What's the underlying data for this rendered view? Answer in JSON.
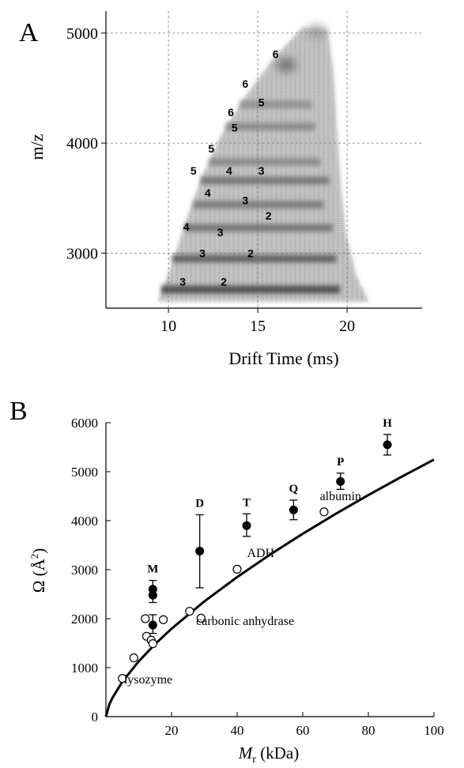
{
  "panel_a": {
    "letter": "A",
    "x_label": "Drift Time (ms)",
    "y_label": "m/z"
  },
  "panel_b": {
    "letter": "B",
    "x_label_main": "M",
    "x_label_sub": "r",
    "x_label_units": " (kDa)",
    "y_label_main": "Ω (Å",
    "y_label_sup": "2",
    "y_label_end": ")"
  },
  "chart_data": [
    {
      "type": "heatmap",
      "title": "",
      "xlabel": "Drift Time (ms)",
      "ylabel": "m/z",
      "xlim": [
        6.5,
        24.2
      ],
      "ylim": [
        2500,
        5200
      ],
      "x_ticks": [
        10,
        15,
        20
      ],
      "y_ticks": [
        3000,
        4000,
        5000
      ],
      "grid": true,
      "colormap": "grayscale",
      "signal_envelope": [
        {
          "drift_time": 9.4,
          "mz": 2560
        },
        {
          "drift_time": 10.2,
          "mz": 2900
        },
        {
          "drift_time": 11.0,
          "mz": 3300
        },
        {
          "drift_time": 11.9,
          "mz": 3700
        },
        {
          "drift_time": 12.9,
          "mz": 4050
        },
        {
          "drift_time": 14.2,
          "mz": 4400
        },
        {
          "drift_time": 15.8,
          "mz": 4750
        },
        {
          "drift_time": 17.5,
          "mz": 5050
        },
        {
          "drift_time": 18.9,
          "mz": 5030
        },
        {
          "drift_time": 19.2,
          "mz": 4700
        },
        {
          "drift_time": 19.4,
          "mz": 4200
        },
        {
          "drift_time": 19.6,
          "mz": 3700
        },
        {
          "drift_time": 19.9,
          "mz": 3200
        },
        {
          "drift_time": 20.5,
          "mz": 2800
        },
        {
          "drift_time": 21.2,
          "mz": 2560
        }
      ],
      "bands": [
        {
          "mz": 2670,
          "from": 9.6,
          "to": 19.6,
          "intensity": 0.9
        },
        {
          "mz": 2950,
          "from": 10.2,
          "to": 19.4,
          "intensity": 0.75
        },
        {
          "mz": 3230,
          "from": 10.9,
          "to": 19.2,
          "intensity": 0.6
        },
        {
          "mz": 3440,
          "from": 11.4,
          "to": 18.7,
          "intensity": 0.55
        },
        {
          "mz": 3660,
          "from": 11.8,
          "to": 19.0,
          "intensity": 0.6
        },
        {
          "mz": 3830,
          "from": 12.3,
          "to": 18.5,
          "intensity": 0.45
        },
        {
          "mz": 4150,
          "from": 13.2,
          "to": 18.2,
          "intensity": 0.45
        },
        {
          "mz": 4350,
          "from": 14.0,
          "to": 18.0,
          "intensity": 0.4
        }
      ],
      "hot_spots": [
        {
          "drift_time": 16.6,
          "mz": 4710,
          "intensity": 0.65
        },
        {
          "drift_time": 18.3,
          "mz": 5010,
          "intensity": 0.3
        }
      ],
      "charge_state_labels": [
        {
          "text": "6",
          "drift_time": 16.0,
          "mz": 4810
        },
        {
          "text": "6",
          "drift_time": 14.3,
          "mz": 4540
        },
        {
          "text": "6",
          "drift_time": 13.5,
          "mz": 4280
        },
        {
          "text": "5",
          "drift_time": 15.2,
          "mz": 4370
        },
        {
          "text": "5",
          "drift_time": 13.7,
          "mz": 4140
        },
        {
          "text": "5",
          "drift_time": 12.4,
          "mz": 3950
        },
        {
          "text": "5",
          "drift_time": 11.4,
          "mz": 3750
        },
        {
          "text": "4",
          "drift_time": 13.4,
          "mz": 3750
        },
        {
          "text": "4",
          "drift_time": 12.2,
          "mz": 3550
        },
        {
          "text": "4",
          "drift_time": 11.0,
          "mz": 3240
        },
        {
          "text": "3",
          "drift_time": 15.2,
          "mz": 3750
        },
        {
          "text": "3",
          "drift_time": 14.3,
          "mz": 3480
        },
        {
          "text": "3",
          "drift_time": 12.9,
          "mz": 3190
        },
        {
          "text": "3",
          "drift_time": 11.9,
          "mz": 3000
        },
        {
          "text": "3",
          "drift_time": 10.8,
          "mz": 2740
        },
        {
          "text": "2",
          "drift_time": 15.6,
          "mz": 3340
        },
        {
          "text": "2",
          "drift_time": 14.6,
          "mz": 3000
        },
        {
          "text": "2",
          "drift_time": 13.1,
          "mz": 2740
        }
      ]
    },
    {
      "type": "scatter",
      "title": "",
      "xlabel": "Mr (kDa)",
      "ylabel": "Ω (Å2)",
      "xlim": [
        0,
        100
      ],
      "ylim": [
        0,
        6000
      ],
      "x_ticks": [
        20,
        40,
        60,
        80,
        100
      ],
      "y_ticks": [
        0,
        1000,
        2000,
        3000,
        4000,
        5000,
        6000
      ],
      "grid": false,
      "series": [
        {
          "marker": "filled-circle",
          "color": "#000000",
          "points": [
            {
              "x": 14.3,
              "y": 2600,
              "err_low": 2450,
              "err_high": 2780,
              "label": "M"
            },
            {
              "x": 14.3,
              "y": 2480,
              "err_low": 2330,
              "err_high": 2600
            },
            {
              "x": 14.3,
              "y": 1870,
              "err_low": 1700,
              "err_high": 2080
            },
            {
              "x": 28.6,
              "y": 3380,
              "err_low": 2630,
              "err_high": 4120,
              "label": "D"
            },
            {
              "x": 42.9,
              "y": 3900,
              "err_low": 3680,
              "err_high": 4140,
              "label": "T"
            },
            {
              "x": 57.2,
              "y": 4220,
              "err_low": 4020,
              "err_high": 4420,
              "label": "Q"
            },
            {
              "x": 71.5,
              "y": 4800,
              "err_low": 4640,
              "err_high": 4970,
              "label": "P"
            },
            {
              "x": 85.8,
              "y": 5550,
              "err_low": 5340,
              "err_high": 5760,
              "label": "H"
            }
          ]
        },
        {
          "marker": "open-circle",
          "color": "#000000",
          "points": [
            {
              "x": 5.0,
              "y": 780
            },
            {
              "x": 8.5,
              "y": 1200
            },
            {
              "x": 12.0,
              "y": 2000
            },
            {
              "x": 12.4,
              "y": 1640
            },
            {
              "x": 13.8,
              "y": 1560
            },
            {
              "x": 14.3,
              "y": 1490
            },
            {
              "x": 17.5,
              "y": 1980
            },
            {
              "x": 25.5,
              "y": 2150
            },
            {
              "x": 29.0,
              "y": 2010
            },
            {
              "x": 40.0,
              "y": 3010
            },
            {
              "x": 66.5,
              "y": 4180
            }
          ]
        },
        {
          "type": "line",
          "formula": "2.435 * (Mr*1000)^(2/3)",
          "color": "#000000",
          "points": [
            {
              "x": 0,
              "y": 0
            },
            {
              "x": 1,
              "y": 243
            },
            {
              "x": 2,
              "y": 386
            },
            {
              "x": 5,
              "y": 712
            },
            {
              "x": 10,
              "y": 1130
            },
            {
              "x": 15,
              "y": 1481
            },
            {
              "x": 20,
              "y": 1795
            },
            {
              "x": 30,
              "y": 2352
            },
            {
              "x": 40,
              "y": 2849
            },
            {
              "x": 50,
              "y": 3306
            },
            {
              "x": 60,
              "y": 3733
            },
            {
              "x": 70,
              "y": 4138
            },
            {
              "x": 80,
              "y": 4523
            },
            {
              "x": 90,
              "y": 4892
            },
            {
              "x": 100,
              "y": 5247
            }
          ]
        }
      ],
      "annotations": [
        {
          "text": "lysozyme",
          "x": 5.5,
          "y": 680
        },
        {
          "text": "carbonic anhydrase",
          "x": 27.5,
          "y": 1870
        },
        {
          "text": "ADH",
          "x": 43.0,
          "y": 3260
        },
        {
          "text": "albumin",
          "x": 65.2,
          "y": 4420
        }
      ]
    }
  ]
}
